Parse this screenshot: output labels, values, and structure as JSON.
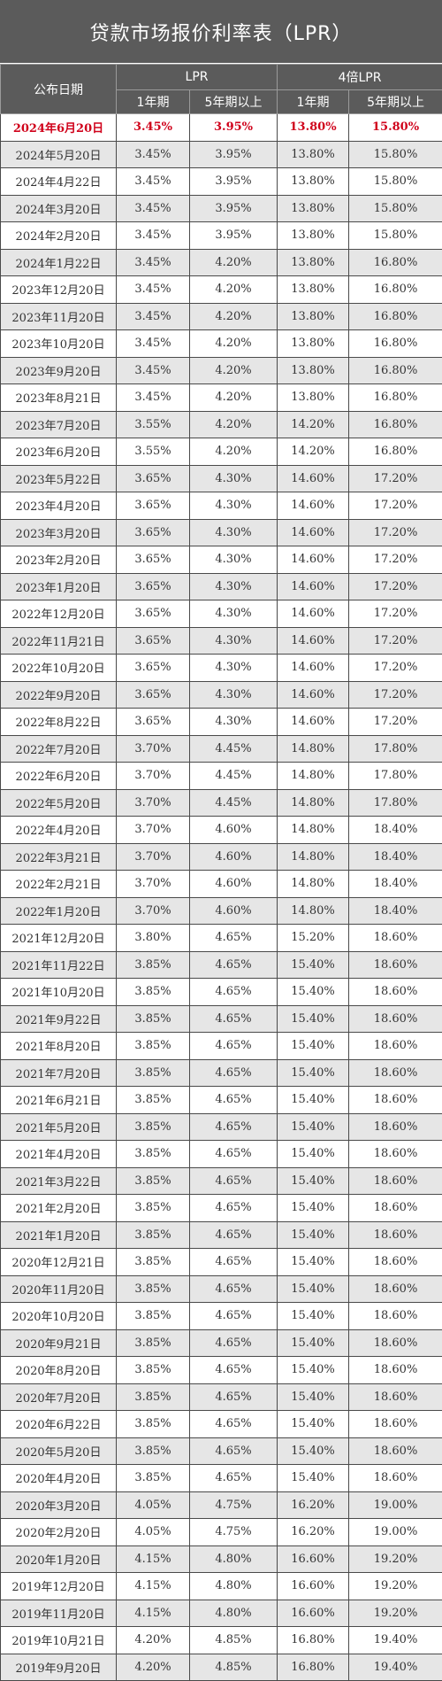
{
  "title": "贷款市场报价利率表（LPR）",
  "accent_color": "#d0021b",
  "header": {
    "date_col": "公布日期",
    "lpr_group": "LPR",
    "lpr4_group": "4倍LPR",
    "one_year": "1年期",
    "five_year": "5年期以上",
    "one_year_4x": "1年期",
    "five_year_4x": "5年期以上"
  },
  "rows": [
    {
      "date": "2024年6月20日",
      "y1": "3.45%",
      "y5": "3.95%",
      "q1": "13.80%",
      "q5": "15.80%",
      "highlight": true
    },
    {
      "date": "2024年5月20日",
      "y1": "3.45%",
      "y5": "3.95%",
      "q1": "13.80%",
      "q5": "15.80%"
    },
    {
      "date": "2024年4月22日",
      "y1": "3.45%",
      "y5": "3.95%",
      "q1": "13.80%",
      "q5": "15.80%"
    },
    {
      "date": "2024年3月20日",
      "y1": "3.45%",
      "y5": "3.95%",
      "q1": "13.80%",
      "q5": "15.80%"
    },
    {
      "date": "2024年2月20日",
      "y1": "3.45%",
      "y5": "3.95%",
      "q1": "13.80%",
      "q5": "15.80%"
    },
    {
      "date": "2024年1月22日",
      "y1": "3.45%",
      "y5": "4.20%",
      "q1": "13.80%",
      "q5": "16.80%"
    },
    {
      "date": "2023年12月20日",
      "y1": "3.45%",
      "y5": "4.20%",
      "q1": "13.80%",
      "q5": "16.80%"
    },
    {
      "date": "2023年11月20日",
      "y1": "3.45%",
      "y5": "4.20%",
      "q1": "13.80%",
      "q5": "16.80%"
    },
    {
      "date": "2023年10月20日",
      "y1": "3.45%",
      "y5": "4.20%",
      "q1": "13.80%",
      "q5": "16.80%"
    },
    {
      "date": "2023年9月20日",
      "y1": "3.45%",
      "y5": "4.20%",
      "q1": "13.80%",
      "q5": "16.80%"
    },
    {
      "date": "2023年8月21日",
      "y1": "3.45%",
      "y5": "4.20%",
      "q1": "13.80%",
      "q5": "16.80%"
    },
    {
      "date": "2023年7月20日",
      "y1": "3.55%",
      "y5": "4.20%",
      "q1": "14.20%",
      "q5": "16.80%"
    },
    {
      "date": "2023年6月20日",
      "y1": "3.55%",
      "y5": "4.20%",
      "q1": "14.20%",
      "q5": "16.80%"
    },
    {
      "date": "2023年5月22日",
      "y1": "3.65%",
      "y5": "4.30%",
      "q1": "14.60%",
      "q5": "17.20%"
    },
    {
      "date": "2023年4月20日",
      "y1": "3.65%",
      "y5": "4.30%",
      "q1": "14.60%",
      "q5": "17.20%"
    },
    {
      "date": "2023年3月20日",
      "y1": "3.65%",
      "y5": "4.30%",
      "q1": "14.60%",
      "q5": "17.20%"
    },
    {
      "date": "2023年2月20日",
      "y1": "3.65%",
      "y5": "4.30%",
      "q1": "14.60%",
      "q5": "17.20%"
    },
    {
      "date": "2023年1月20日",
      "y1": "3.65%",
      "y5": "4.30%",
      "q1": "14.60%",
      "q5": "17.20%"
    },
    {
      "date": "2022年12月20日",
      "y1": "3.65%",
      "y5": "4.30%",
      "q1": "14.60%",
      "q5": "17.20%"
    },
    {
      "date": "2022年11月21日",
      "y1": "3.65%",
      "y5": "4.30%",
      "q1": "14.60%",
      "q5": "17.20%"
    },
    {
      "date": "2022年10月20日",
      "y1": "3.65%",
      "y5": "4.30%",
      "q1": "14.60%",
      "q5": "17.20%"
    },
    {
      "date": "2022年9月20日",
      "y1": "3.65%",
      "y5": "4.30%",
      "q1": "14.60%",
      "q5": "17.20%"
    },
    {
      "date": "2022年8月22日",
      "y1": "3.65%",
      "y5": "4.30%",
      "q1": "14.60%",
      "q5": "17.20%"
    },
    {
      "date": "2022年7月20日",
      "y1": "3.70%",
      "y5": "4.45%",
      "q1": "14.80%",
      "q5": "17.80%"
    },
    {
      "date": "2022年6月20日",
      "y1": "3.70%",
      "y5": "4.45%",
      "q1": "14.80%",
      "q5": "17.80%"
    },
    {
      "date": "2022年5月20日",
      "y1": "3.70%",
      "y5": "4.45%",
      "q1": "14.80%",
      "q5": "17.80%"
    },
    {
      "date": "2022年4月20日",
      "y1": "3.70%",
      "y5": "4.60%",
      "q1": "14.80%",
      "q5": "18.40%"
    },
    {
      "date": "2022年3月21日",
      "y1": "3.70%",
      "y5": "4.60%",
      "q1": "14.80%",
      "q5": "18.40%"
    },
    {
      "date": "2022年2月21日",
      "y1": "3.70%",
      "y5": "4.60%",
      "q1": "14.80%",
      "q5": "18.40%"
    },
    {
      "date": "2022年1月20日",
      "y1": "3.70%",
      "y5": "4.60%",
      "q1": "14.80%",
      "q5": "18.40%"
    },
    {
      "date": "2021年12月20日",
      "y1": "3.80%",
      "y5": "4.65%",
      "q1": "15.20%",
      "q5": "18.60%"
    },
    {
      "date": "2021年11月22日",
      "y1": "3.85%",
      "y5": "4.65%",
      "q1": "15.40%",
      "q5": "18.60%"
    },
    {
      "date": "2021年10月20日",
      "y1": "3.85%",
      "y5": "4.65%",
      "q1": "15.40%",
      "q5": "18.60%"
    },
    {
      "date": "2021年9月22日",
      "y1": "3.85%",
      "y5": "4.65%",
      "q1": "15.40%",
      "q5": "18.60%"
    },
    {
      "date": "2021年8月20日",
      "y1": "3.85%",
      "y5": "4.65%",
      "q1": "15.40%",
      "q5": "18.60%"
    },
    {
      "date": "2021年7月20日",
      "y1": "3.85%",
      "y5": "4.65%",
      "q1": "15.40%",
      "q5": "18.60%"
    },
    {
      "date": "2021年6月21日",
      "y1": "3.85%",
      "y5": "4.65%",
      "q1": "15.40%",
      "q5": "18.60%"
    },
    {
      "date": "2021年5月20日",
      "y1": "3.85%",
      "y5": "4.65%",
      "q1": "15.40%",
      "q5": "18.60%"
    },
    {
      "date": "2021年4月20日",
      "y1": "3.85%",
      "y5": "4.65%",
      "q1": "15.40%",
      "q5": "18.60%"
    },
    {
      "date": "2021年3月22日",
      "y1": "3.85%",
      "y5": "4.65%",
      "q1": "15.40%",
      "q5": "18.60%"
    },
    {
      "date": "2021年2月20日",
      "y1": "3.85%",
      "y5": "4.65%",
      "q1": "15.40%",
      "q5": "18.60%"
    },
    {
      "date": "2021年1月20日",
      "y1": "3.85%",
      "y5": "4.65%",
      "q1": "15.40%",
      "q5": "18.60%"
    },
    {
      "date": "2020年12月21日",
      "y1": "3.85%",
      "y5": "4.65%",
      "q1": "15.40%",
      "q5": "18.60%"
    },
    {
      "date": "2020年11月20日",
      "y1": "3.85%",
      "y5": "4.65%",
      "q1": "15.40%",
      "q5": "18.60%"
    },
    {
      "date": "2020年10月20日",
      "y1": "3.85%",
      "y5": "4.65%",
      "q1": "15.40%",
      "q5": "18.60%"
    },
    {
      "date": "2020年9月21日",
      "y1": "3.85%",
      "y5": "4.65%",
      "q1": "15.40%",
      "q5": "18.60%"
    },
    {
      "date": "2020年8月20日",
      "y1": "3.85%",
      "y5": "4.65%",
      "q1": "15.40%",
      "q5": "18.60%"
    },
    {
      "date": "2020年7月20日",
      "y1": "3.85%",
      "y5": "4.65%",
      "q1": "15.40%",
      "q5": "18.60%"
    },
    {
      "date": "2020年6月22日",
      "y1": "3.85%",
      "y5": "4.65%",
      "q1": "15.40%",
      "q5": "18.60%"
    },
    {
      "date": "2020年5月20日",
      "y1": "3.85%",
      "y5": "4.65%",
      "q1": "15.40%",
      "q5": "18.60%"
    },
    {
      "date": "2020年4月20日",
      "y1": "3.85%",
      "y5": "4.65%",
      "q1": "15.40%",
      "q5": "18.60%"
    },
    {
      "date": "2020年3月20日",
      "y1": "4.05%",
      "y5": "4.75%",
      "q1": "16.20%",
      "q5": "19.00%"
    },
    {
      "date": "2020年2月20日",
      "y1": "4.05%",
      "y5": "4.75%",
      "q1": "16.20%",
      "q5": "19.00%"
    },
    {
      "date": "2020年1月20日",
      "y1": "4.15%",
      "y5": "4.80%",
      "q1": "16.60%",
      "q5": "19.20%"
    },
    {
      "date": "2019年12月20日",
      "y1": "4.15%",
      "y5": "4.80%",
      "q1": "16.60%",
      "q5": "19.20%"
    },
    {
      "date": "2019年11月20日",
      "y1": "4.15%",
      "y5": "4.80%",
      "q1": "16.60%",
      "q5": "19.20%"
    },
    {
      "date": "2019年10月21日",
      "y1": "4.20%",
      "y5": "4.85%",
      "q1": "16.80%",
      "q5": "19.40%"
    },
    {
      "date": "2019年9月20日",
      "y1": "4.20%",
      "y5": "4.85%",
      "q1": "16.80%",
      "q5": "19.40%"
    }
  ]
}
